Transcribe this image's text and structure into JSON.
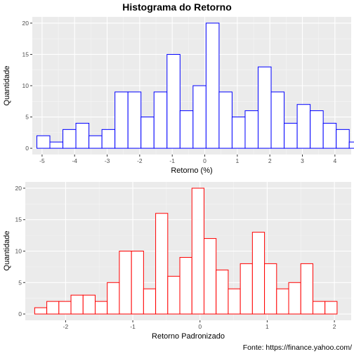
{
  "title": "Histograma do Retorno",
  "caption": "Fonte: https://finance.yahoo.com/",
  "chart_data": [
    {
      "type": "bar",
      "subtype": "histogram",
      "xlabel": "Retorno (%)",
      "ylabel": "Quantidade",
      "xlim": [
        -5.3,
        4.5
      ],
      "ylim": [
        -1,
        21
      ],
      "xticks": [
        -5,
        -4,
        -3,
        -2,
        -1,
        0,
        1,
        2,
        3,
        4
      ],
      "yticks": [
        0,
        5,
        10,
        15,
        20
      ],
      "bin_width": 0.4,
      "first_bin_start": -5.16,
      "values": [
        2,
        1,
        3,
        4,
        2,
        3,
        9,
        9,
        5,
        9,
        15,
        6,
        10,
        20,
        9,
        5,
        6,
        13,
        9,
        4,
        7,
        6,
        4,
        3,
        1
      ],
      "fill": "#ffffff",
      "outline": "#0000ff",
      "grid": true
    },
    {
      "type": "bar",
      "subtype": "histogram",
      "xlabel": "Retorno Padronizado",
      "ylabel": "Quantidade",
      "xlim": [
        -2.6,
        2.25
      ],
      "ylim": [
        -1,
        21
      ],
      "xticks": [
        -2,
        -1,
        0,
        1,
        2
      ],
      "yticks": [
        0,
        5,
        10,
        15,
        20
      ],
      "bin_width": 0.18,
      "first_bin_start": -2.46,
      "values": [
        1,
        2,
        2,
        3,
        3,
        2,
        5,
        10,
        10,
        4,
        16,
        6,
        9,
        20,
        12,
        7,
        4,
        8,
        13,
        8,
        4,
        5,
        8,
        2,
        2
      ],
      "fill": "#ffffff",
      "outline": "#ff0000",
      "grid": true
    }
  ]
}
